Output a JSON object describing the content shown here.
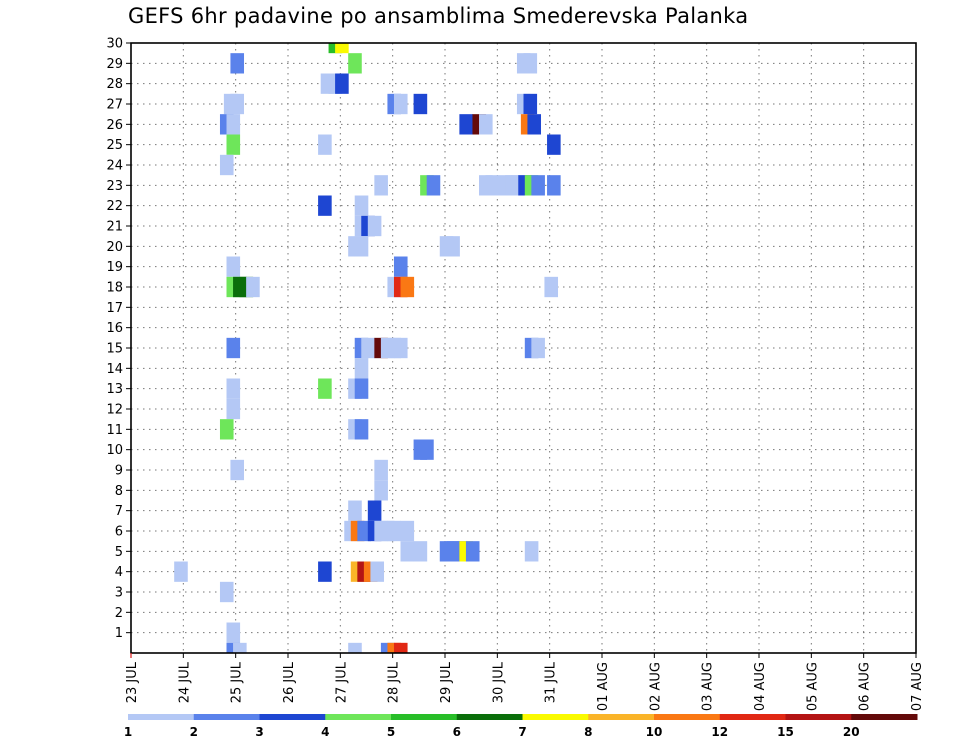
{
  "chart_data": {
    "type": "heatmap",
    "title": "GEFS 6hr padavine po ansamblima Smederevska Palanka",
    "xlabel": "",
    "ylabel": "",
    "x_ticks": [
      "23 JUL",
      "24 JUL",
      "25 JUL",
      "26 JUL",
      "27 JUL",
      "28 JUL",
      "29 JUL",
      "30 JUL",
      "31 JUL",
      "01 AUG",
      "02 AUG",
      "03 AUG",
      "04 AUG",
      "05 AUG",
      "06 AUG",
      "07 AUG"
    ],
    "y_ticks": [
      1,
      2,
      3,
      4,
      5,
      6,
      7,
      8,
      9,
      10,
      11,
      12,
      13,
      14,
      15,
      16,
      17,
      18,
      19,
      20,
      21,
      22,
      23,
      24,
      25,
      26,
      27,
      28,
      29,
      30
    ],
    "y_range": [
      0,
      30
    ],
    "steps_per_day": 4,
    "grid": true,
    "colorbar": {
      "labels": [
        "1",
        "2",
        "3",
        "4",
        "5",
        "6",
        "7",
        "8",
        "10",
        "12",
        "15",
        "20"
      ],
      "colors": [
        "#b4c8f5",
        "#5a82eb",
        "#1e46d2",
        "#6ee65a",
        "#28be28",
        "#0a6e0a",
        "#fafa00",
        "#fab428",
        "#fa7814",
        "#e12814",
        "#b41414",
        "#640a0a"
      ]
    },
    "cells": [
      [
        15.1,
        30,
        5
      ],
      [
        15.6,
        30,
        7
      ],
      [
        7.6,
        29,
        2
      ],
      [
        16.6,
        29,
        4
      ],
      [
        29.5,
        29,
        1
      ],
      [
        30,
        29,
        1
      ],
      [
        14.5,
        28,
        1
      ],
      [
        15.1,
        28,
        1
      ],
      [
        15.6,
        28,
        3
      ],
      [
        7.1,
        27,
        1
      ],
      [
        7.6,
        27,
        1
      ],
      [
        19.6,
        27,
        2
      ],
      [
        20.1,
        27,
        1
      ],
      [
        21.6,
        27,
        3
      ],
      [
        29.5,
        27,
        1
      ],
      [
        30,
        27,
        3
      ],
      [
        6.8,
        26,
        2
      ],
      [
        7.3,
        26,
        1
      ],
      [
        25.1,
        26,
        3
      ],
      [
        26.1,
        26,
        12
      ],
      [
        26.6,
        26,
        1
      ],
      [
        29.8,
        26,
        9
      ],
      [
        30.3,
        26,
        3
      ],
      [
        7.3,
        25,
        4
      ],
      [
        14.3,
        25,
        1
      ],
      [
        31.8,
        25,
        3
      ],
      [
        6.8,
        24,
        1
      ],
      [
        18.6,
        23,
        1
      ],
      [
        22.1,
        23,
        4
      ],
      [
        22.6,
        23,
        2
      ],
      [
        26.6,
        23,
        1
      ],
      [
        27.1,
        23,
        1
      ],
      [
        28.1,
        23,
        1
      ],
      [
        28.6,
        23,
        1
      ],
      [
        29.1,
        23,
        1
      ],
      [
        29.6,
        23,
        3
      ],
      [
        30.1,
        23,
        4
      ],
      [
        30.6,
        23,
        2
      ],
      [
        31.8,
        23,
        2
      ],
      [
        14.3,
        22,
        3
      ],
      [
        17.1,
        22,
        1
      ],
      [
        17.1,
        21,
        1
      ],
      [
        17.6,
        21,
        3
      ],
      [
        18.1,
        21,
        1
      ],
      [
        16.6,
        20,
        1
      ],
      [
        17.1,
        20,
        1
      ],
      [
        23.6,
        20,
        1
      ],
      [
        24.1,
        20,
        1
      ],
      [
        7.3,
        19,
        1
      ],
      [
        20.1,
        19,
        2
      ],
      [
        7.3,
        18,
        4
      ],
      [
        7.8,
        18,
        6
      ],
      [
        8.3,
        18,
        6
      ],
      [
        8.8,
        18,
        1
      ],
      [
        19.6,
        18,
        1
      ],
      [
        20.1,
        18,
        10
      ],
      [
        20.6,
        18,
        9
      ],
      [
        31.6,
        18,
        1
      ],
      [
        7.3,
        15,
        2
      ],
      [
        17.1,
        15,
        2
      ],
      [
        17.6,
        15,
        1
      ],
      [
        18.6,
        15,
        12
      ],
      [
        19.1,
        15,
        1
      ],
      [
        19.6,
        15,
        1
      ],
      [
        20.1,
        15,
        1
      ],
      [
        30.1,
        15,
        2
      ],
      [
        30.6,
        15,
        1
      ],
      [
        17.1,
        14,
        1
      ],
      [
        7.3,
        13,
        1
      ],
      [
        14.3,
        13,
        4
      ],
      [
        16.6,
        13,
        1
      ],
      [
        17.1,
        13,
        2
      ],
      [
        7.3,
        12,
        1
      ],
      [
        6.8,
        11,
        4
      ],
      [
        16.6,
        11,
        1
      ],
      [
        17.1,
        11,
        2
      ],
      [
        21.6,
        10,
        2
      ],
      [
        22.1,
        10,
        2
      ],
      [
        7.6,
        9,
        1
      ],
      [
        18.6,
        9,
        1
      ],
      [
        18.6,
        8,
        1
      ],
      [
        16.6,
        7,
        1
      ],
      [
        18.1,
        7,
        3
      ],
      [
        16.3,
        6,
        1
      ],
      [
        16.8,
        6,
        9
      ],
      [
        17.3,
        6,
        2
      ],
      [
        18.1,
        6,
        3
      ],
      [
        18.6,
        6,
        1
      ],
      [
        19.1,
        6,
        1
      ],
      [
        19.6,
        6,
        1
      ],
      [
        20.6,
        6,
        1
      ],
      [
        20.6,
        5,
        1
      ],
      [
        21.6,
        5,
        1
      ],
      [
        23.6,
        5,
        2
      ],
      [
        24.1,
        5,
        2
      ],
      [
        24.6,
        5,
        2
      ],
      [
        25.1,
        5,
        7
      ],
      [
        25.6,
        5,
        2
      ],
      [
        30.1,
        5,
        1
      ],
      [
        3.3,
        4,
        1
      ],
      [
        14.3,
        4,
        3
      ],
      [
        16.8,
        4,
        8
      ],
      [
        17.3,
        4,
        11
      ],
      [
        17.8,
        4,
        9
      ],
      [
        18.3,
        4,
        1
      ],
      [
        6.8,
        3,
        1
      ],
      [
        7.3,
        1,
        1
      ],
      [
        7.3,
        0,
        2
      ],
      [
        7.8,
        0,
        1
      ],
      [
        16.6,
        0,
        1
      ],
      [
        19.1,
        0,
        2
      ],
      [
        19.6,
        0,
        9
      ],
      [
        20.1,
        0,
        10
      ]
    ]
  }
}
